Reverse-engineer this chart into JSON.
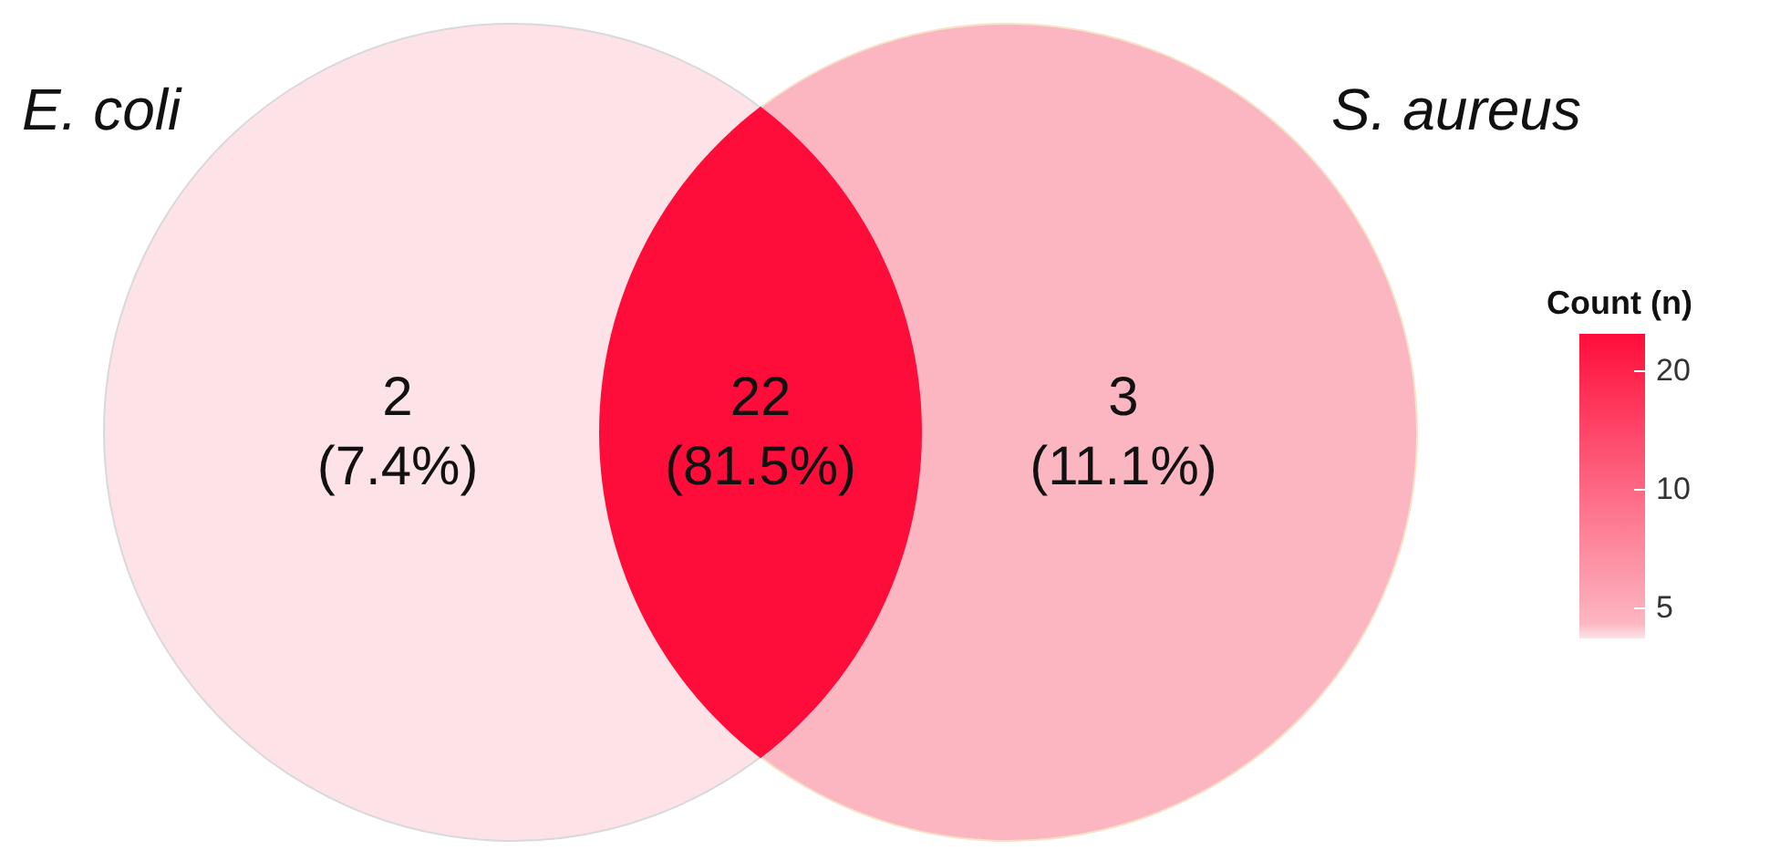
{
  "chart_data": {
    "type": "other",
    "annotations": [
      "E. coli",
      "S. aureus"
    ],
    "categories": [
      null,
      null,
      null
    ],
    "values": [
      2,
      22,
      3
    ],
    "value_labels": [
      "2 (7.4%)",
      "22 (81.5%)",
      "3 (11.1%)"
    ],
    "colors": [
      "#fde3e8",
      "#ff0d3a",
      "#fcb6c2"
    ],
    "clabel": "Count (n)",
    "cticks": [
      {
        "value": null,
        "label": "5"
      },
      {
        "value": null,
        "label": "10"
      },
      {
        "value": null,
        "label": "20"
      }
    ]
  }
}
